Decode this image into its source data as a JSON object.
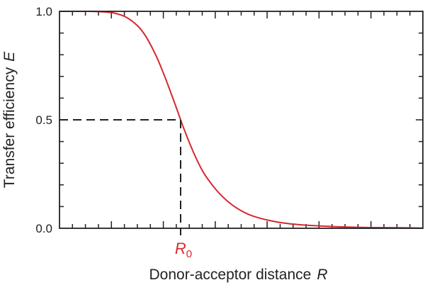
{
  "chart_data": {
    "type": "line",
    "title": "",
    "xlabel": "Donor-acceptor distance",
    "xlabel_var": "R",
    "ylabel": "Transfer efficiency",
    "ylabel_var": "E",
    "xlim": [
      0,
      3
    ],
    "ylim": [
      0,
      1.0
    ],
    "y_ticks": [
      {
        "value": 0.0,
        "label": "0.0"
      },
      {
        "value": 0.5,
        "label": "0.5"
      },
      {
        "value": 1.0,
        "label": "1.0"
      }
    ],
    "x_marker": {
      "value": 1,
      "label": "R",
      "subscript": "0",
      "color": "#d7282f"
    },
    "reference_point": {
      "x": 1,
      "y": 0.5
    },
    "series": [
      {
        "color": "#d7282f",
        "x": [
          0.0,
          0.25,
          0.35,
          0.45,
          0.55,
          0.65,
          0.72,
          0.8,
          0.86,
          0.92,
          0.97,
          1.0,
          1.03,
          1.08,
          1.14,
          1.2,
          1.3,
          1.4,
          1.5,
          1.6,
          1.75,
          1.9,
          2.1,
          2.3,
          2.5,
          2.7,
          2.85,
          3.0
        ],
        "y": [
          1.0,
          1.0,
          0.998,
          0.992,
          0.973,
          0.93,
          0.878,
          0.792,
          0.712,
          0.624,
          0.547,
          0.5,
          0.455,
          0.384,
          0.309,
          0.247,
          0.173,
          0.119,
          0.081,
          0.056,
          0.034,
          0.021,
          0.012,
          0.007,
          0.004,
          0.003,
          0.002,
          0.001
        ]
      }
    ],
    "grid": false,
    "dashed_color": "#222222",
    "axis_color": "#222222"
  }
}
